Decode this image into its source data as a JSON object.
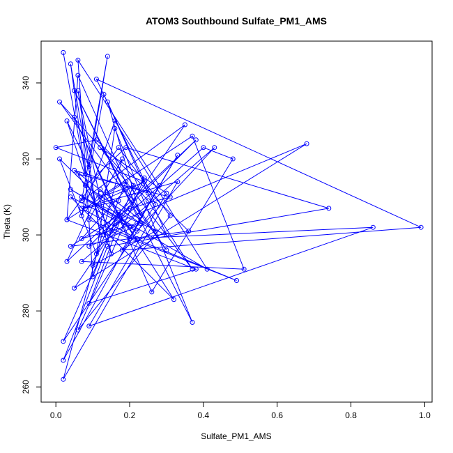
{
  "chart_data": {
    "type": "line",
    "title": "ATOM3 Southbound Sulfate_PM1_AMS",
    "xlabel": "Sulfate_PM1_AMS",
    "ylabel": "Theta (K)",
    "xlim": [
      -0.04,
      1.02
    ],
    "ylim": [
      256,
      351
    ],
    "xticks": [
      0.0,
      0.2,
      0.4,
      0.6,
      0.8,
      1.0
    ],
    "xtick_labels": [
      "0.0",
      "0.2",
      "0.4",
      "0.6",
      "0.8",
      "1.0"
    ],
    "yticks": [
      260,
      280,
      300,
      320,
      340
    ],
    "ytick_labels": [
      "260",
      "280",
      "300",
      "320",
      "340"
    ],
    "grid": false,
    "colors": {
      "series": "#0000ff",
      "axis": "#000000"
    },
    "series": [
      {
        "marker": "open-circle",
        "x": [
          0.02,
          0.08,
          0.04,
          0.12,
          0.06,
          0.15,
          0.03,
          0.09,
          0.14,
          0.07,
          0.35,
          0.05,
          0.68,
          0.16,
          0.02,
          0.27,
          0.11,
          0.99,
          0.18,
          0.33,
          0.22,
          0.07,
          0.19,
          0.3,
          0.01,
          0.25,
          0.37,
          0.12,
          0.3,
          0.09,
          0.86,
          0.2,
          0.05,
          0.26,
          0.48,
          0.4,
          0.13,
          0.24,
          0.06,
          0.31,
          0.17,
          0.03,
          0.38,
          0.09,
          0.21,
          0.12,
          0.37,
          0.51,
          0.07,
          0.43,
          0.22,
          0.04,
          0.32,
          0.17,
          0.1,
          0.06,
          0.28,
          0.02,
          0.14,
          0.74,
          0.19,
          0.08,
          0.23,
          0.05,
          0.37,
          0.16,
          0.11,
          0.01,
          0.2,
          0.07,
          0.3,
          0.14,
          0.23,
          0.06,
          0.03,
          0.19,
          0.1,
          0.27,
          0.05,
          0.25,
          0.13,
          0.07,
          0.16,
          0.41,
          0.04,
          0.21,
          0.09,
          0.38,
          0.03,
          0.12,
          0.22,
          0.07,
          0.33,
          0.02,
          0.18,
          0.09,
          0.49,
          0.15,
          0.06,
          0.31,
          0.2,
          0.04,
          0.36,
          0.11,
          0.0,
          0.24,
          0.08,
          0.17
        ],
        "y": [
          348,
          316,
          345,
          300,
          338,
          295,
          330,
          318,
          347,
          309,
          329,
          286,
          324,
          303,
          272,
          308,
          341,
          302,
          296,
          321,
          303,
          299,
          312,
          296,
          335,
          309,
          291,
          323,
          311,
          276,
          302,
          299,
          331,
          285,
          320,
          323,
          300,
          315,
          275,
          305,
          323,
          304,
          291,
          282,
          313,
          310,
          326,
          291,
          293,
          323,
          301,
          310,
          283,
          306,
          289,
          346,
          313,
          267,
          297,
          307,
          323,
          313,
          303,
          338,
          277,
          328,
          295,
          320,
          302,
          310,
          300,
          335,
          305,
          342,
          304,
          314,
          292,
          301,
          317,
          311,
          337,
          305,
          330,
          291,
          312,
          302,
          297,
          325,
          293,
          312,
          299,
          307,
          314,
          262,
          320,
          304,
          288,
          301,
          316,
          310,
          307,
          297,
          301,
          325,
          323,
          314,
          307,
          309
        ]
      }
    ]
  }
}
